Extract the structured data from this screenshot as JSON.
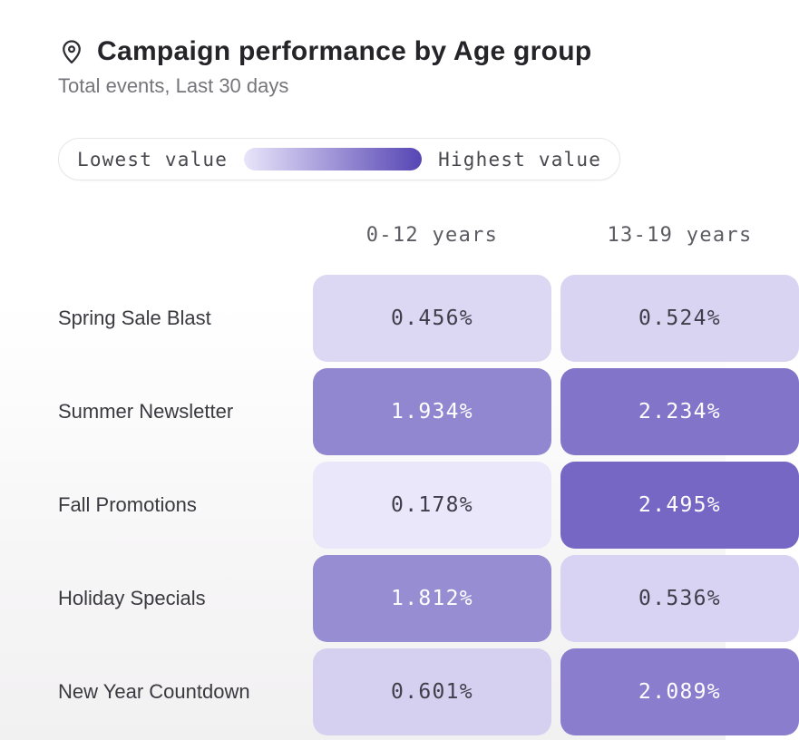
{
  "header": {
    "icon": "location-pin-icon",
    "title": "Campaign performance by Age group",
    "subtitle": "Total events, Last 30 days"
  },
  "legend": {
    "low_label": "Lowest value",
    "high_label": "Highest value",
    "gradient_low_color": "#e9e5fa",
    "gradient_high_color": "#5645b4"
  },
  "chart_data": {
    "type": "heatmap",
    "title": "Campaign performance by Age group",
    "subtitle": "Total events, Last 30 days",
    "columns": [
      "0-12 years",
      "13-19 years"
    ],
    "rows": [
      "Spring Sale Blast",
      "Summer Newsletter",
      "Fall Promotions",
      "Holiday Specials",
      "New Year Countdown"
    ],
    "values": [
      [
        0.456,
        0.524
      ],
      [
        1.934,
        2.234
      ],
      [
        0.178,
        2.495
      ],
      [
        1.812,
        0.536
      ],
      [
        0.601,
        2.089
      ]
    ],
    "value_decimals": 3,
    "value_suffix": "%",
    "cell_low_color": "#eae7fa",
    "cell_high_color": "#7567c3",
    "dark_text_color": "#403e4a",
    "light_text_color": "#ffffff",
    "legend_position": "top"
  }
}
